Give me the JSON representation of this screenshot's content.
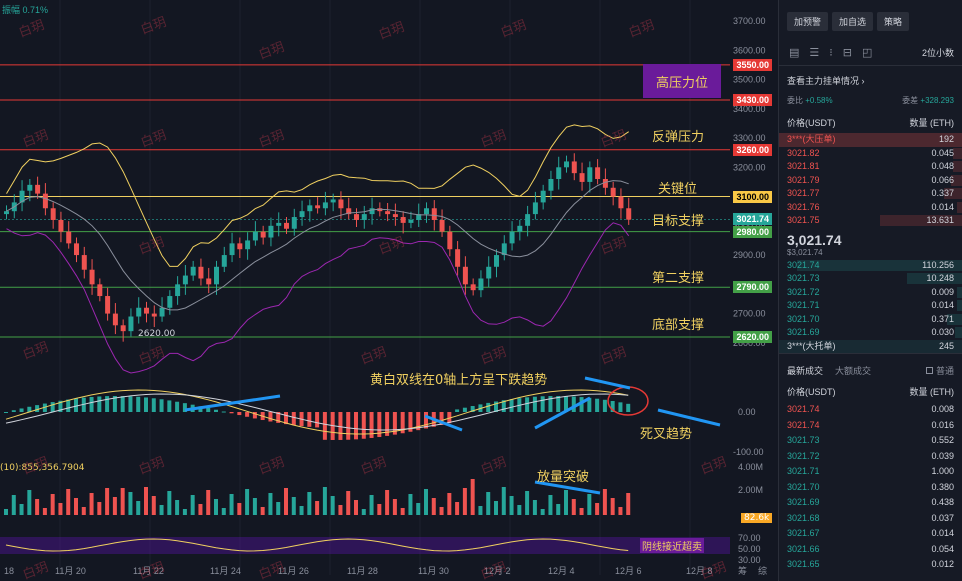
{
  "chart": {
    "top_info": "振幅 0.71%",
    "volume_label": "(10):855,356.7904",
    "low_label": "2620.00",
    "y_ticks": [
      "3700.00",
      "3600.00",
      "3500.00",
      "3400.00",
      "3300.00",
      "3200.00",
      "3100.00",
      "3000.00",
      "2900.00",
      "2800.00",
      "2700.00",
      "2600.00"
    ],
    "macd_zero": "0.00",
    "macd_neg": "-100.00",
    "vol_ticks": [
      "4.00M",
      "2.00M"
    ],
    "vol_tag": "82.6k",
    "rsi_ticks": [
      "70.00",
      "50.00",
      "30.00"
    ],
    "x_ticks": [
      "18",
      "11月 20",
      "11月 22",
      "11月 24",
      "11月 26",
      "11月 28",
      "11月 30",
      "12月 2",
      "12月 4",
      "12月 6",
      "12月 8"
    ],
    "corner_icons": [
      "筹",
      "综"
    ],
    "price_tags": [
      {
        "price": "3550.00",
        "color": "#e53935"
      },
      {
        "price": "3430.00",
        "color": "#e53935"
      },
      {
        "price": "3260.00",
        "color": "#e53935"
      },
      {
        "price": "3100.00",
        "color": "#f9c846"
      },
      {
        "price": "3021.74",
        "color": "#26a69a"
      },
      {
        "price": "2980.00",
        "color": "#43a047"
      },
      {
        "price": "2790.00",
        "color": "#43a047"
      },
      {
        "price": "2620.00",
        "color": "#43a047"
      }
    ],
    "annotations": {
      "high_pressure": "高压力位",
      "rebound_pressure": "反弹压力",
      "key_level": "关键位",
      "target_support": "目标支撑",
      "second_support": "第二支撑",
      "bottom_support": "底部支撑",
      "macd_note": "黄白双线在0轴上方呈下跌趋势",
      "death_cross": "死叉趋势",
      "volume_break": "放量突破",
      "rsi_note": "阴线接近超卖"
    },
    "watermark": "白玥",
    "colors": {
      "up": "#26a69a",
      "down": "#ef5350",
      "yellow": "#f0d060",
      "purple": "#9c27b0"
    }
  },
  "panel": {
    "buttons": [
      "加预警",
      "加自选",
      "策略"
    ],
    "interval": "2位小数",
    "section_title": "查看主力挂单情况",
    "ratio": {
      "left_label": "委比",
      "left_value": "+0.58%",
      "right_label": "委差",
      "right_value": "+328.293"
    },
    "col_price": "价格(USDT)",
    "col_qty": "数量 (ETH)",
    "big_ask": {
      "label": "3***(大压单)",
      "qty": "192"
    },
    "asks": [
      {
        "price": "3021.82",
        "qty": "0.045",
        "w": 0.05
      },
      {
        "price": "3021.81",
        "qty": "0.048",
        "w": 0.05
      },
      {
        "price": "3021.79",
        "qty": "0.066",
        "w": 0.06
      },
      {
        "price": "3021.77",
        "qty": "0.337",
        "w": 0.1
      },
      {
        "price": "3021.76",
        "qty": "0.014",
        "w": 0.03
      },
      {
        "price": "3021.75",
        "qty": "13.631",
        "w": 0.45
      }
    ],
    "last_price": "3,021.74",
    "last_price_sub": "$3,021.74",
    "bids": [
      {
        "price": "3021.74",
        "qty": "110.256",
        "w": 0.9
      },
      {
        "price": "3021.73",
        "qty": "10.248",
        "w": 0.3
      },
      {
        "price": "3021.72",
        "qty": "0.009",
        "w": 0.03
      },
      {
        "price": "3021.71",
        "qty": "0.014",
        "w": 0.03
      },
      {
        "price": "3021.70",
        "qty": "0.371",
        "w": 0.08
      },
      {
        "price": "3021.69",
        "qty": "0.030",
        "w": 0.04
      }
    ],
    "big_bid": {
      "label": "3***(大托单)",
      "qty": "245"
    },
    "tabs": {
      "latest": "最新成交",
      "large": "大额成交",
      "check": "普通"
    },
    "trades_col_price": "价格(USDT)",
    "trades_col_qty": "数量 (ETH)",
    "trades": [
      {
        "price": "3021.74",
        "qty": "0.008",
        "side": "sell"
      },
      {
        "price": "3021.74",
        "qty": "0.016",
        "side": "sell"
      },
      {
        "price": "3021.73",
        "qty": "0.552",
        "side": "buy"
      },
      {
        "price": "3021.72",
        "qty": "0.039",
        "side": "buy"
      },
      {
        "price": "3021.71",
        "qty": "1.000",
        "side": "buy"
      },
      {
        "price": "3021.70",
        "qty": "0.380",
        "side": "buy"
      },
      {
        "price": "3021.69",
        "qty": "0.438",
        "side": "buy"
      },
      {
        "price": "3021.68",
        "qty": "0.037",
        "side": "buy"
      },
      {
        "price": "3021.67",
        "qty": "0.014",
        "side": "buy"
      },
      {
        "price": "3021.66",
        "qty": "0.054",
        "side": "buy"
      },
      {
        "price": "3021.65",
        "qty": "0.012",
        "side": "buy"
      }
    ]
  }
}
